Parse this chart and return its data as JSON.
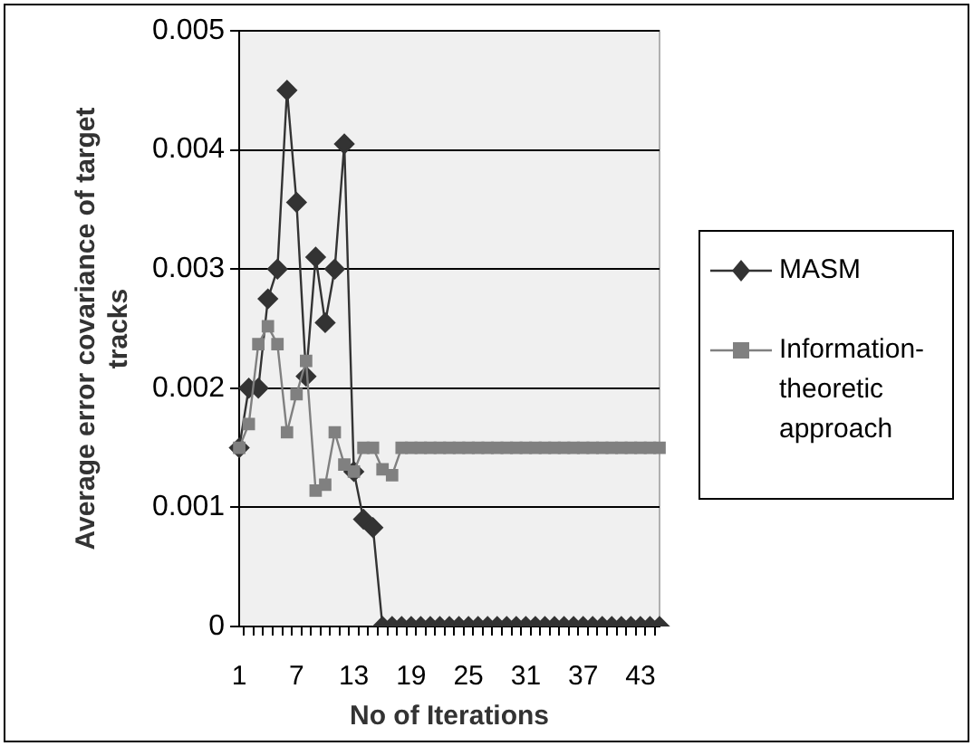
{
  "chart_data": {
    "type": "line",
    "xlabel": "No of Iterations",
    "ylabel": "Average error covariance of target tracks",
    "categories": [
      "1",
      null,
      null,
      null,
      null,
      null,
      "7",
      null,
      null,
      null,
      null,
      null,
      "13",
      null,
      null,
      null,
      null,
      null,
      "19",
      null,
      null,
      null,
      null,
      null,
      "25",
      null,
      null,
      null,
      null,
      null,
      "31",
      null,
      null,
      null,
      null,
      null,
      "37",
      null,
      null,
      null,
      null,
      null,
      "43",
      null,
      null
    ],
    "series": [
      {
        "name": "MASM",
        "color": "#333333",
        "marker": "diamond",
        "values": [
          0.0015,
          0.002,
          0.002,
          0.00275,
          0.003,
          0.0045,
          0.00356,
          0.0021,
          0.0031,
          0.00255,
          0.003,
          0.00405,
          0.0013,
          0.0009,
          0.00083,
          0,
          0,
          0,
          0,
          0,
          0,
          0,
          0,
          0,
          0,
          0,
          0,
          0,
          0,
          0,
          0,
          0,
          0,
          0,
          0,
          0,
          0,
          0,
          0,
          0,
          0,
          0,
          0,
          0,
          0
        ]
      },
      {
        "name": "Information-theoretic approach",
        "color": "#808080",
        "marker": "square",
        "values": [
          0.0015,
          0.0017,
          0.00237,
          0.00252,
          0.00237,
          0.00163,
          0.00195,
          0.00223,
          0.00114,
          0.00119,
          0.00163,
          0.00136,
          0.0013,
          0.0015,
          0.0015,
          0.00132,
          0.00127,
          0.0015,
          0.0015,
          0.0015,
          0.0015,
          0.0015,
          0.0015,
          0.0015,
          0.0015,
          0.0015,
          0.0015,
          0.0015,
          0.0015,
          0.0015,
          0.0015,
          0.0015,
          0.0015,
          0.0015,
          0.0015,
          0.0015,
          0.0015,
          0.0015,
          0.0015,
          0.0015,
          0.0015,
          0.0015,
          0.0015,
          0.0015,
          0.0015
        ]
      }
    ],
    "ylim": [
      0,
      0.005
    ],
    "yticks": [
      0,
      0.001,
      0.002,
      0.003,
      0.004,
      0.005
    ],
    "grid": "y",
    "legend": "right"
  }
}
